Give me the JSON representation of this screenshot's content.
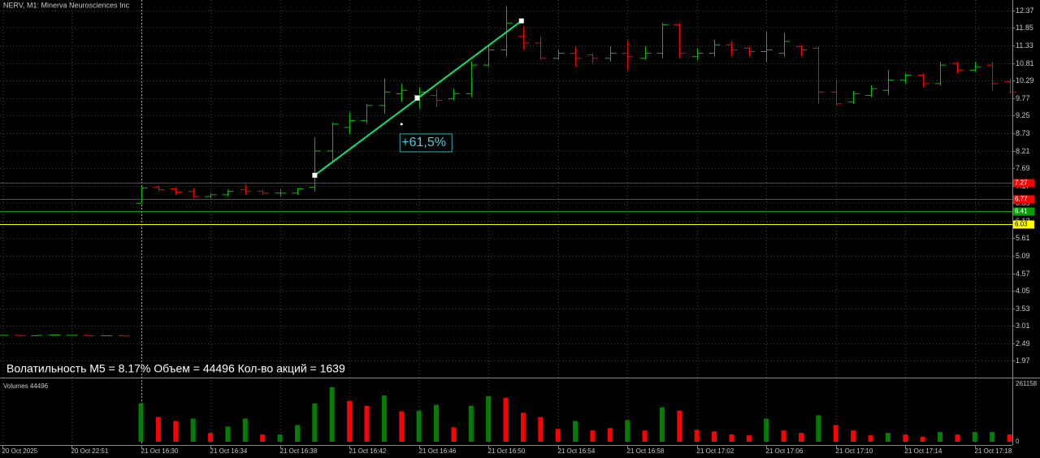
{
  "chart_data": {
    "type": "ohlc",
    "title": "NERV, M1:  Minerva Neurosciences Inc",
    "info": "Волатильность M5 = 8.17% Объем = 44496 Кол-во акций = 1639",
    "up_color": "#00c000",
    "down_color": "#ff0000",
    "ylim": [
      1.5,
      12.68
    ],
    "yticks": [
      1.97,
      2.49,
      3.01,
      3.53,
      4.05,
      4.57,
      5.09,
      5.61,
      6.13,
      6.65,
      7.17,
      7.69,
      8.21,
      8.73,
      9.25,
      9.77,
      10.29,
      10.81,
      11.33,
      11.85,
      12.37
    ],
    "grid": true,
    "xticks": [
      {
        "value": 0,
        "label": "20 Oct 2025"
      },
      {
        "value": 4,
        "label": "20 Oct 22:51"
      },
      {
        "value": 8,
        "label": "21 Oct 16:30"
      },
      {
        "value": 12,
        "label": "21 Oct 16:34"
      },
      {
        "value": 16,
        "label": "21 Oct 16:38"
      },
      {
        "value": 20,
        "label": "21 Oct 16:42"
      },
      {
        "value": 24,
        "label": "21 Oct 16:46"
      },
      {
        "value": 28,
        "label": "21 Oct 16:50"
      },
      {
        "value": 32,
        "label": "21 Oct 16:54"
      },
      {
        "value": 36,
        "label": "21 Oct 16:58"
      },
      {
        "value": 40,
        "label": "21 Oct 17:02"
      },
      {
        "value": 44,
        "label": "21 Oct 17:06"
      },
      {
        "value": 48,
        "label": "21 Oct 17:10"
      },
      {
        "value": 52,
        "label": "21 Oct 17:14"
      },
      {
        "value": 56,
        "label": "21 Oct 17:18"
      }
    ],
    "session_break": 8,
    "ohlc": [
      [
        2.73,
        2.74,
        2.72,
        2.73
      ],
      [
        2.73,
        2.74,
        2.72,
        2.72
      ],
      [
        2.72,
        2.74,
        2.71,
        2.73
      ],
      [
        2.74,
        2.75,
        2.73,
        2.74
      ],
      [
        2.73,
        2.74,
        2.72,
        2.73
      ],
      [
        2.73,
        2.74,
        2.72,
        2.72
      ],
      [
        2.72,
        2.73,
        2.71,
        2.72
      ],
      [
        2.72,
        2.73,
        2.71,
        2.71
      ],
      [
        6.65,
        7.17,
        6.65,
        7.1
      ],
      [
        7.12,
        7.17,
        7.0,
        7.05
      ],
      [
        7.08,
        7.12,
        6.9,
        6.98
      ],
      [
        7.0,
        7.1,
        6.8,
        6.85
      ],
      [
        6.85,
        6.95,
        6.8,
        6.9
      ],
      [
        6.9,
        7.05,
        6.85,
        7.0
      ],
      [
        7.05,
        7.2,
        6.9,
        7.0
      ],
      [
        7.0,
        7.05,
        6.9,
        6.95
      ],
      [
        6.95,
        7.05,
        6.85,
        6.95
      ],
      [
        6.95,
        7.1,
        6.9,
        7.08
      ],
      [
        7.12,
        8.6,
        7.0,
        8.2
      ],
      [
        8.2,
        9.05,
        7.9,
        9.0
      ],
      [
        8.9,
        9.35,
        8.7,
        9.1
      ],
      [
        9.1,
        9.6,
        9.0,
        9.55
      ],
      [
        9.55,
        10.35,
        9.3,
        9.95
      ],
      [
        9.9,
        10.2,
        9.65,
        10.0
      ],
      [
        9.85,
        10.1,
        9.45,
        9.95
      ],
      [
        9.85,
        10.05,
        9.5,
        9.7
      ],
      [
        9.75,
        10.05,
        9.7,
        9.9
      ],
      [
        9.9,
        10.85,
        9.8,
        10.75
      ],
      [
        10.75,
        11.35,
        10.7,
        11.2
      ],
      [
        11.2,
        12.5,
        11.0,
        12.0
      ],
      [
        11.6,
        11.9,
        11.2,
        11.4
      ],
      [
        11.4,
        11.6,
        10.9,
        10.95
      ],
      [
        10.95,
        11.2,
        10.9,
        11.1
      ],
      [
        11.1,
        11.3,
        10.7,
        10.95
      ],
      [
        11.05,
        11.1,
        10.8,
        10.95
      ],
      [
        10.95,
        11.3,
        10.85,
        11.1
      ],
      [
        11.1,
        11.5,
        10.6,
        11.0
      ],
      [
        10.95,
        11.3,
        10.9,
        11.1
      ],
      [
        11.1,
        12.0,
        10.95,
        11.95
      ],
      [
        11.95,
        12.0,
        10.95,
        11.1
      ],
      [
        11.0,
        11.25,
        10.9,
        11.1
      ],
      [
        11.1,
        11.5,
        11.0,
        11.35
      ],
      [
        11.35,
        11.45,
        11.0,
        11.2
      ],
      [
        11.25,
        11.3,
        11.0,
        11.15
      ],
      [
        11.15,
        11.75,
        10.85,
        11.2
      ],
      [
        11.1,
        11.7,
        11.0,
        11.45
      ],
      [
        11.3,
        11.35,
        11.0,
        11.2
      ],
      [
        11.25,
        11.3,
        9.6,
        9.95
      ],
      [
        9.95,
        10.3,
        9.55,
        9.6
      ],
      [
        9.65,
        9.98,
        9.6,
        9.9
      ],
      [
        9.85,
        10.15,
        9.8,
        10.05
      ],
      [
        10.0,
        10.6,
        9.85,
        10.3
      ],
      [
        10.3,
        10.5,
        10.2,
        10.45
      ],
      [
        10.45,
        10.5,
        10.1,
        10.2
      ],
      [
        10.2,
        10.85,
        10.15,
        10.75
      ],
      [
        10.8,
        10.85,
        10.5,
        10.6
      ],
      [
        10.6,
        10.85,
        10.55,
        10.7
      ],
      [
        10.75,
        10.85,
        10.0,
        10.2
      ],
      [
        10.25,
        10.35,
        9.9,
        9.95
      ]
    ],
    "levels": [
      {
        "value": 7.27,
        "color": "#ff0000"
      },
      {
        "value": 6.77,
        "color": "#ff0000"
      },
      {
        "value": 6.41,
        "color": "#00a000"
      },
      {
        "value": 6.03,
        "color": "#ffff00"
      }
    ],
    "trendline": {
      "x": [
        18,
        29.9
      ],
      "y": [
        7.48,
        12.06
      ],
      "mid": [
        23.9,
        9.77
      ],
      "label": "+61,5%",
      "label_at": [
        23,
        8.73
      ],
      "color": "#00e676"
    },
    "volume": {
      "title": "Volumes 44496",
      "ylim": [
        0,
        287000
      ],
      "yticks": [
        0,
        261158
      ],
      "values": [
        null,
        null,
        null,
        null,
        null,
        null,
        null,
        null,
        174000,
        112000,
        94000,
        105000,
        40000,
        69000,
        105000,
        33000,
        33000,
        76000,
        174000,
        247000,
        185000,
        163000,
        210000,
        138000,
        141000,
        167000,
        65000,
        163000,
        207000,
        199000,
        131000,
        112000,
        58000,
        94000,
        51000,
        62000,
        98000,
        51000,
        156000,
        141000,
        54000,
        47000,
        33000,
        29000,
        105000,
        51000,
        40000,
        120000,
        76000,
        51000,
        29000,
        40000,
        33000,
        22000,
        44000,
        33000,
        44000,
        44000,
        33000
      ],
      "colors": [
        null,
        null,
        null,
        null,
        null,
        null,
        null,
        null,
        "#008000",
        "#ff0000",
        "#ff0000",
        "#008000",
        "#ff0000",
        "#008000",
        "#008000",
        "#ff0000",
        "#008000",
        "#008000",
        "#008000",
        "#008000",
        "#ff0000",
        "#ff0000",
        "#008000",
        "#ff0000",
        "#008000",
        "#008000",
        "#ff0000",
        "#008000",
        "#008000",
        "#ff0000",
        "#ff0000",
        "#ff0000",
        "#ff0000",
        "#008000",
        "#ff0000",
        "#ff0000",
        "#008000",
        "#ff0000",
        "#008000",
        "#ff0000",
        "#ff0000",
        "#ff0000",
        "#ff0000",
        "#ff0000",
        "#008000",
        "#ff0000",
        "#ff0000",
        "#008000",
        "#ff0000",
        "#ff0000",
        "#ff0000",
        "#008000",
        "#ff0000",
        "#ff0000",
        "#008000",
        "#ff0000",
        "#008000",
        "#008000",
        "#ff0000"
      ]
    }
  }
}
